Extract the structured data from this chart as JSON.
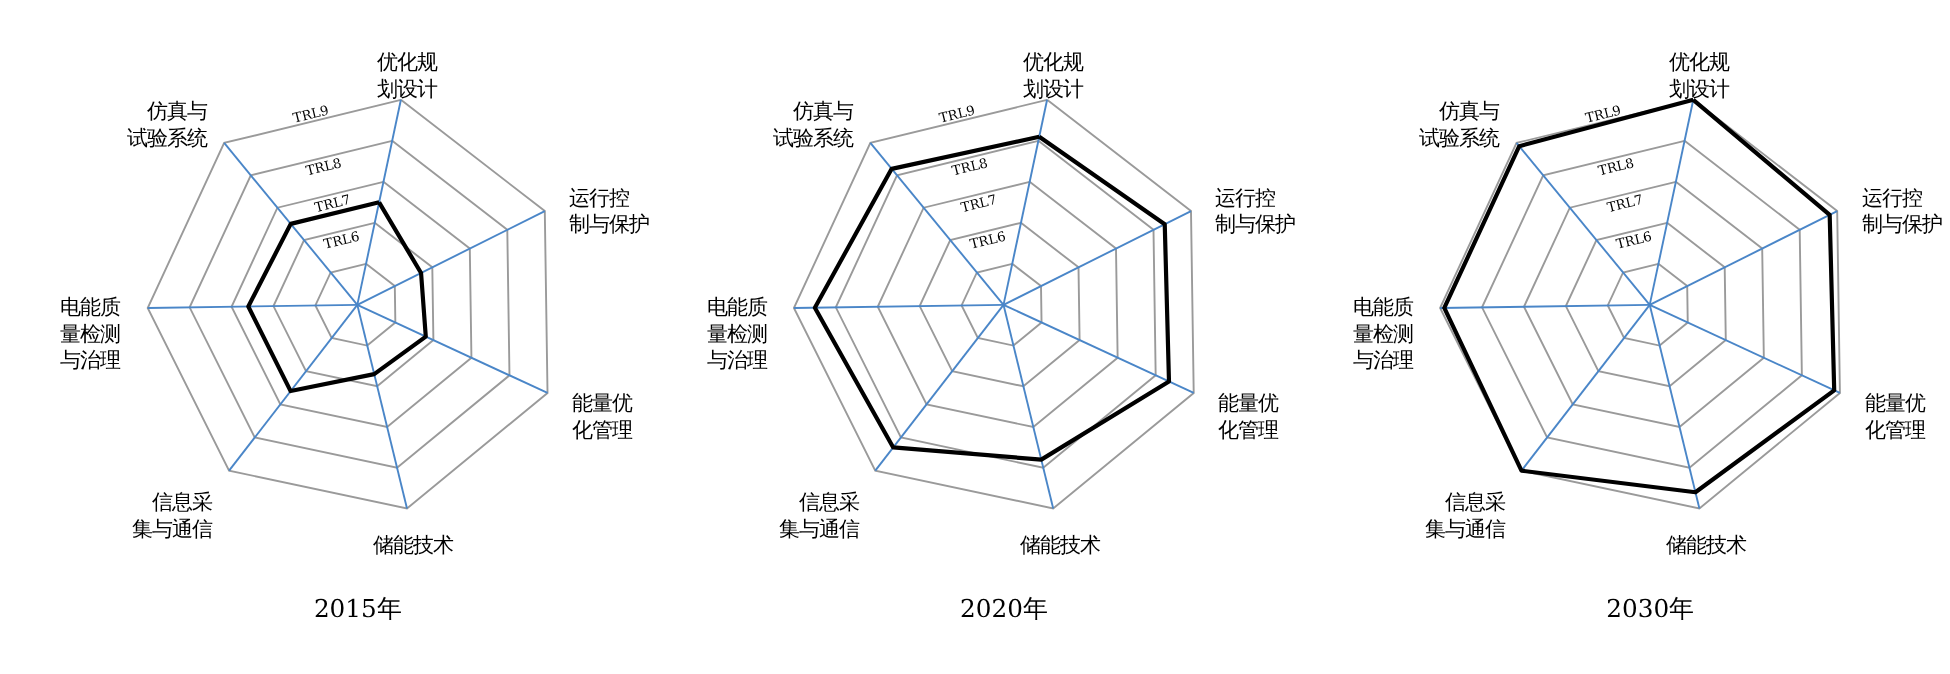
{
  "chart_data": [
    {
      "type": "radar",
      "title": "2015年",
      "categories": [
        "优化规划设计",
        "运行控制与保护",
        "能量优化管理",
        "储能技术",
        "信息采集与通信",
        "电能质量检测与治理",
        "仿真与试验系统"
      ],
      "series": [
        {
          "color": "#000000",
          "values": [
            6.5,
            5.7,
            5.8,
            5.7,
            6.6,
            6.6,
            6.5
          ]
        }
      ],
      "ylim": [
        4,
        9
      ],
      "yticks": [
        {
          "value": 6,
          "label": "TRL6"
        },
        {
          "value": 7,
          "label": "TRL7"
        },
        {
          "value": 8,
          "label": "TRL8"
        },
        {
          "value": 9,
          "label": "TRL9"
        }
      ],
      "grid": true
    },
    {
      "type": "radar",
      "title": "2020年",
      "categories": [
        "优化规划设计",
        "运行控制与保护",
        "能量优化管理",
        "储能技术",
        "信息采集与通信",
        "电能质量检测与治理",
        "仿真与试验系统"
      ],
      "series": [
        {
          "color": "#000000",
          "values": [
            8.1,
            8.3,
            8.35,
            7.8,
            8.3,
            8.5,
            8.2
          ]
        }
      ],
      "ylim": [
        4,
        9
      ],
      "yticks": [
        {
          "value": 6,
          "label": "TRL6"
        },
        {
          "value": 7,
          "label": "TRL7"
        },
        {
          "value": 8,
          "label": "TRL8"
        },
        {
          "value": 9,
          "label": "TRL9"
        }
      ],
      "grid": true
    },
    {
      "type": "radar",
      "title": "2030年",
      "categories": [
        "优化规划设计",
        "运行控制与保护",
        "能量优化管理",
        "储能技术",
        "信息采集与通信",
        "电能质量检测与治理",
        "仿真与试验系统"
      ],
      "series": [
        {
          "color": "#000000",
          "values": [
            9.0,
            8.8,
            8.85,
            8.6,
            9.0,
            8.9,
            8.9
          ]
        }
      ],
      "ylim": [
        4,
        9
      ],
      "yticks": [
        {
          "value": 6,
          "label": "TRL6"
        },
        {
          "value": 7,
          "label": "TRL7"
        },
        {
          "value": 8,
          "label": "TRL8"
        },
        {
          "value": 9,
          "label": "TRL9"
        }
      ],
      "grid": true
    }
  ]
}
